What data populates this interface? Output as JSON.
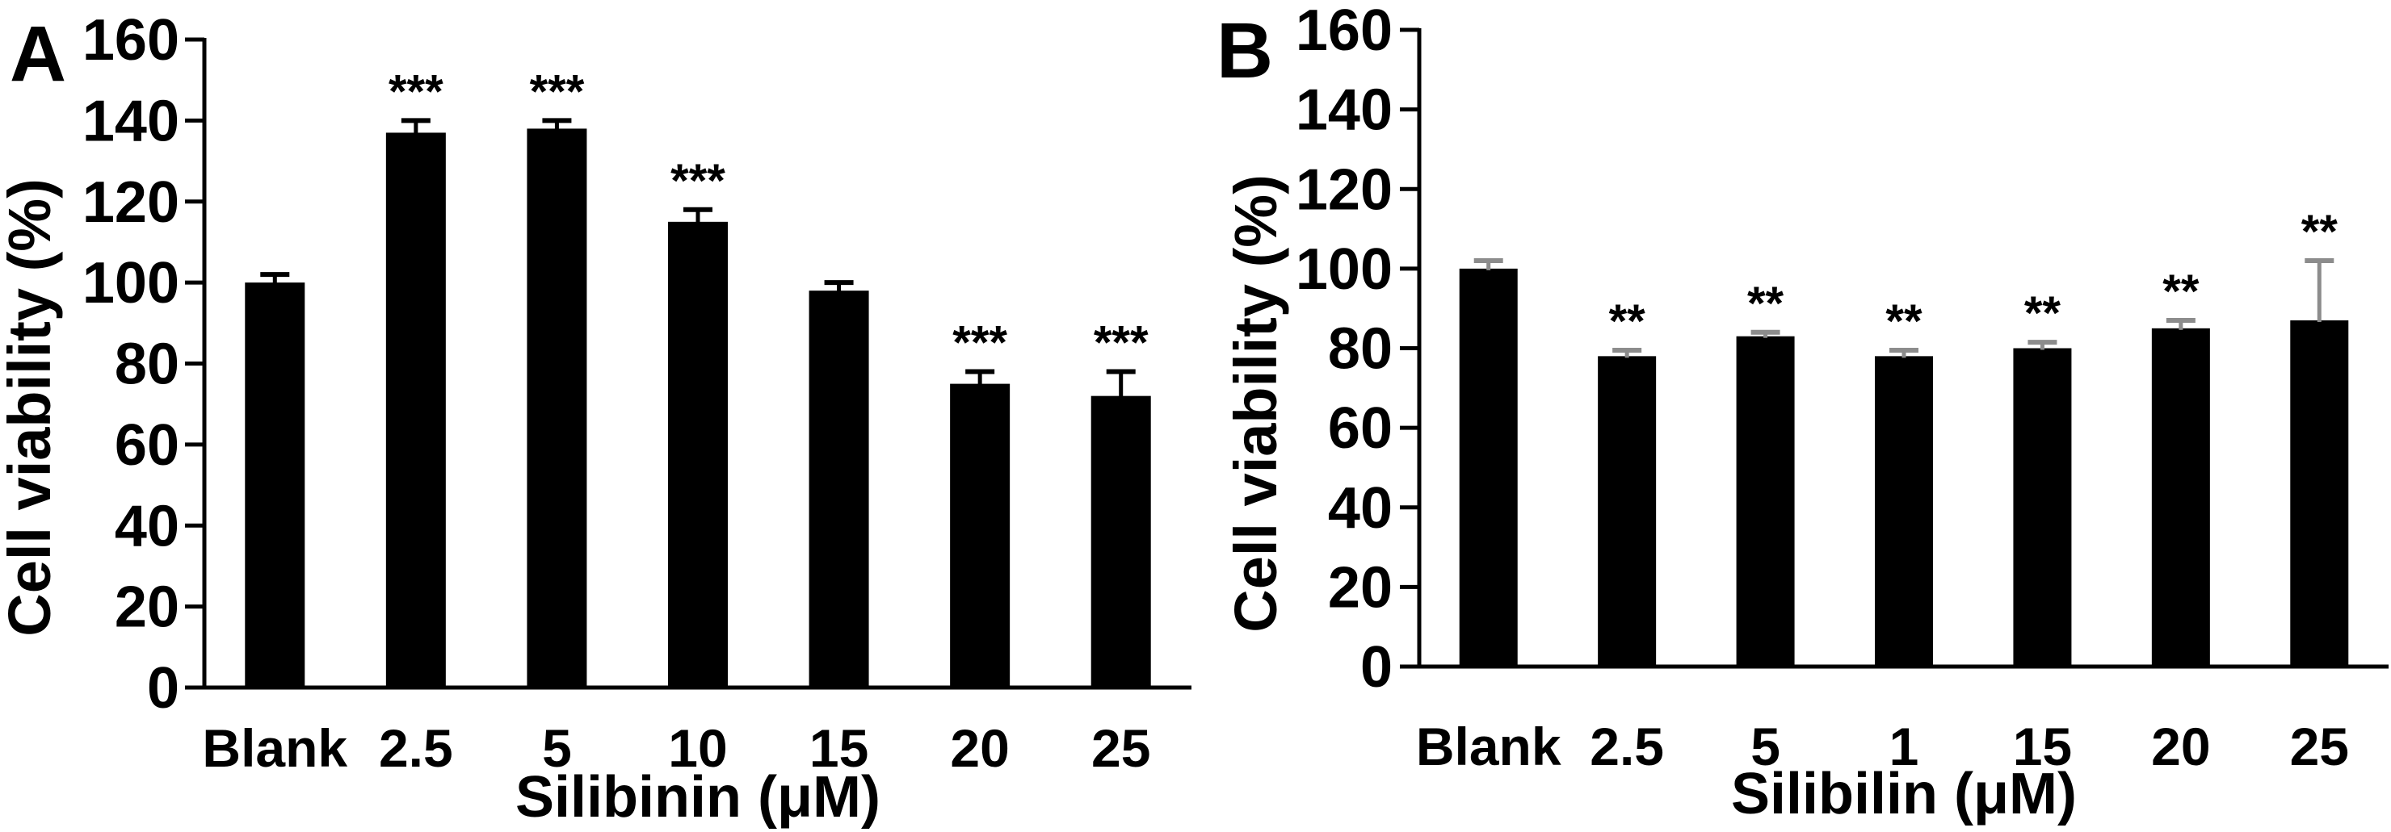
{
  "figure": {
    "background": "#ffffff",
    "description_text_visible": false
  },
  "chart_data": [
    {
      "type": "bar",
      "panel_label": "A",
      "title": "",
      "xlabel": "Silibinin (μM)",
      "ylabel": "Cell viability (%)",
      "categories": [
        "Blank",
        "2.5",
        "5",
        "10",
        "15",
        "20",
        "25"
      ],
      "values": [
        100,
        137,
        138,
        115,
        98,
        75,
        72
      ],
      "errors": [
        2,
        3,
        2,
        3,
        2,
        3,
        6
      ],
      "significance": [
        "",
        "***",
        "***",
        "***",
        "",
        "***",
        "***"
      ],
      "ylim": [
        0,
        160
      ],
      "ytick_interval": 20,
      "ytick_labels": [
        "0",
        "20",
        "40",
        "60",
        "80",
        "100",
        "120",
        "140",
        "160"
      ],
      "bar_color": "#000000",
      "error_bar_color": "#000000",
      "axis_color": "#000000",
      "grid": false,
      "legend": null
    },
    {
      "type": "bar",
      "panel_label": "B",
      "title": "",
      "xlabel": "Silibilin (μM)",
      "ylabel": "Cell viability (%)",
      "categories": [
        "Blank",
        "2.5",
        "5",
        "1",
        "15",
        "20",
        "25"
      ],
      "values": [
        100,
        78,
        83,
        78,
        80,
        85,
        87
      ],
      "errors": [
        2,
        1.5,
        1,
        1.5,
        1.5,
        2,
        15
      ],
      "significance": [
        "",
        "**",
        "**",
        "**",
        "**",
        "**",
        "**"
      ],
      "ylim": [
        0,
        160
      ],
      "ytick_interval": 20,
      "ytick_labels": [
        "0",
        "20",
        "40",
        "60",
        "80",
        "100",
        "120",
        "140",
        "160"
      ],
      "bar_color": "#000000",
      "error_bar_color": "#8c8c8c",
      "axis_color": "#000000",
      "grid": false,
      "legend": null
    }
  ]
}
